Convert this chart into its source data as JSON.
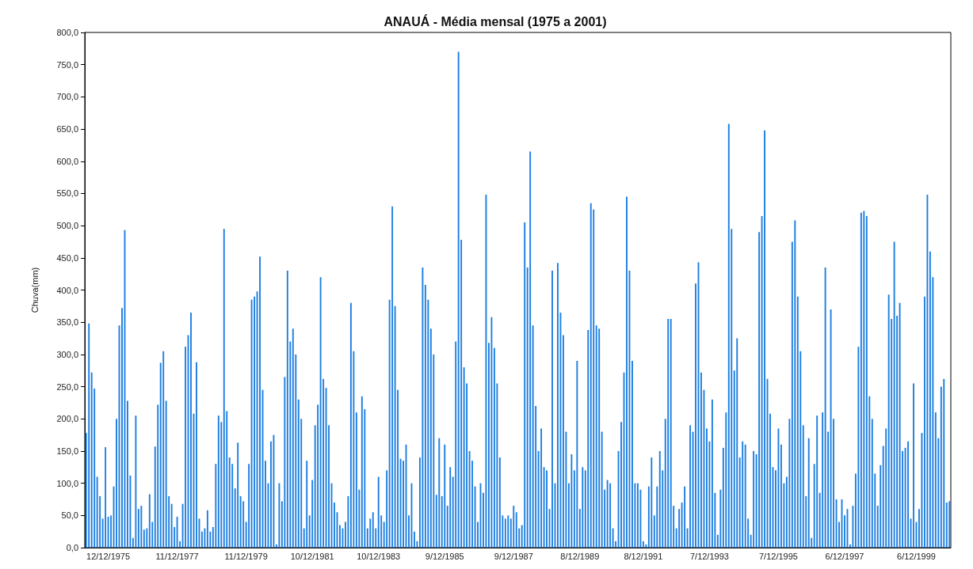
{
  "chart_data": {
    "type": "bar",
    "title": "ANAUÁ - Média mensal (1975 a 2001)",
    "ylabel": "Chuva(mm)",
    "categories": [
      null,
      null,
      null,
      null,
      null,
      null,
      null,
      null,
      "12/12/1975",
      null,
      null,
      null,
      null,
      null,
      null,
      null,
      null,
      null,
      null,
      null,
      null,
      null,
      null,
      null,
      null,
      null,
      null,
      null,
      null,
      null,
      null,
      null,
      null,
      "11/12/1977",
      null,
      null,
      null,
      null,
      null,
      null,
      null,
      null,
      null,
      null,
      null,
      null,
      null,
      null,
      null,
      null,
      null,
      null,
      null,
      null,
      null,
      null,
      null,
      null,
      "11/12/1979",
      null,
      null,
      null,
      null,
      null,
      null,
      null,
      null,
      null,
      null,
      null,
      null,
      null,
      null,
      null,
      null,
      null,
      null,
      null,
      null,
      null,
      null,
      null,
      "10/12/1981",
      null,
      null,
      null,
      null,
      null,
      null,
      null,
      null,
      null,
      null,
      null,
      null,
      null,
      null,
      null,
      null,
      null,
      null,
      null,
      null,
      null,
      null,
      null,
      "10/12/1983",
      null,
      null,
      null,
      null,
      null,
      null,
      null,
      null,
      null,
      null,
      null,
      null,
      null,
      null,
      null,
      null,
      null,
      null,
      null,
      null,
      null,
      null,
      null,
      "9/12/1985",
      null,
      null,
      null,
      null,
      null,
      null,
      null,
      null,
      null,
      null,
      null,
      null,
      null,
      null,
      null,
      null,
      null,
      null,
      null,
      null,
      null,
      null,
      null,
      null,
      "9/12/1987",
      null,
      null,
      null,
      null,
      null,
      null,
      null,
      null,
      null,
      null,
      null,
      null,
      null,
      null,
      null,
      null,
      null,
      null,
      null,
      null,
      null,
      null,
      null,
      "8/12/1989",
      null,
      null,
      null,
      null,
      null,
      null,
      null,
      null,
      null,
      null,
      null,
      null,
      null,
      null,
      null,
      null,
      null,
      null,
      null,
      null,
      null,
      null,
      "8/12/1991",
      null,
      null,
      null,
      null,
      null,
      null,
      null,
      null,
      null,
      null,
      null,
      null,
      null,
      null,
      null,
      null,
      null,
      null,
      null,
      null,
      null,
      null,
      null,
      "7/12/1993",
      null,
      null,
      null,
      null,
      null,
      null,
      null,
      null,
      null,
      null,
      null,
      null,
      null,
      null,
      null,
      null,
      null,
      null,
      null,
      null,
      null,
      null,
      null,
      null,
      "7/12/1995",
      null,
      null,
      null,
      null,
      null,
      null,
      null,
      null,
      null,
      null,
      null,
      null,
      null,
      null,
      null,
      null,
      null,
      null,
      null,
      null,
      null,
      null,
      null,
      "6/12/1997",
      null,
      null,
      null,
      null,
      null,
      null,
      null,
      null,
      null,
      null,
      null,
      null,
      null,
      null,
      null,
      null,
      null,
      null,
      null,
      null,
      null,
      null,
      null,
      null,
      null,
      "6/12/1999",
      null,
      null,
      null,
      null,
      null,
      null,
      null,
      null,
      null,
      null,
      null,
      null
    ],
    "values": [
      178,
      348,
      272,
      247,
      110,
      80,
      45,
      156,
      48,
      50,
      95,
      200,
      345,
      372,
      493,
      228,
      112,
      15,
      205,
      60,
      65,
      28,
      30,
      83,
      40,
      157,
      222,
      287,
      305,
      228,
      80,
      68,
      32,
      48,
      10,
      68,
      312,
      330,
      365,
      208,
      288,
      45,
      25,
      30,
      58,
      25,
      32,
      130,
      205,
      195,
      495,
      212,
      140,
      130,
      92,
      163,
      80,
      72,
      40,
      130,
      385,
      390,
      398,
      452,
      245,
      135,
      100,
      165,
      175,
      5,
      100,
      72,
      265,
      430,
      320,
      340,
      300,
      230,
      200,
      30,
      135,
      50,
      105,
      190,
      222,
      420,
      262,
      248,
      190,
      100,
      70,
      55,
      35,
      30,
      40,
      80,
      380,
      305,
      210,
      90,
      235,
      215,
      30,
      45,
      55,
      30,
      110,
      50,
      40,
      120,
      385,
      530,
      375,
      245,
      138,
      135,
      160,
      50,
      100,
      25,
      10,
      140,
      435,
      408,
      385,
      340,
      300,
      82,
      170,
      80,
      160,
      65,
      125,
      110,
      320,
      770,
      478,
      280,
      255,
      150,
      135,
      95,
      40,
      100,
      85,
      548,
      318,
      358,
      310,
      255,
      140,
      50,
      45,
      50,
      45,
      65,
      55,
      30,
      35,
      505,
      435,
      615,
      345,
      220,
      150,
      185,
      125,
      120,
      60,
      430,
      100,
      442,
      365,
      330,
      180,
      100,
      145,
      120,
      290,
      60,
      125,
      120,
      338,
      535,
      525,
      345,
      340,
      180,
      90,
      105,
      100,
      30,
      10,
      150,
      195,
      272,
      545,
      430,
      290,
      100,
      100,
      90,
      10,
      5,
      95,
      140,
      50,
      95,
      150,
      120,
      200,
      355,
      355,
      65,
      30,
      60,
      70,
      95,
      30,
      190,
      180,
      410,
      443,
      272,
      245,
      185,
      165,
      230,
      85,
      20,
      90,
      155,
      210,
      658,
      495,
      275,
      325,
      140,
      165,
      160,
      45,
      20,
      150,
      145,
      490,
      515,
      648,
      262,
      208,
      125,
      120,
      185,
      160,
      100,
      110,
      200,
      475,
      508,
      390,
      305,
      190,
      80,
      170,
      15,
      130,
      205,
      85,
      210,
      435,
      180,
      370,
      200,
      75,
      40,
      75,
      50,
      60,
      5,
      65,
      115,
      312,
      520,
      523,
      515,
      235,
      200,
      115,
      65,
      128,
      158,
      185,
      393,
      355,
      475,
      360,
      380,
      150,
      155,
      165,
      45,
      255,
      40,
      60,
      178,
      390,
      548,
      460,
      420,
      210,
      170,
      250,
      262,
      70,
      72
    ],
    "color": "#1e7fe0",
    "ylim": [
      0,
      800
    ],
    "yticks": [
      {
        "value": 0,
        "label": "0,0"
      },
      {
        "value": 50,
        "label": "50,0"
      },
      {
        "value": 100,
        "label": "100,0"
      },
      {
        "value": 150,
        "label": "150,0"
      },
      {
        "value": 200,
        "label": "200,0"
      },
      {
        "value": 250,
        "label": "250,0"
      },
      {
        "value": 300,
        "label": "300,0"
      },
      {
        "value": 350,
        "label": "350,0"
      },
      {
        "value": 400,
        "label": "400,0"
      },
      {
        "value": 450,
        "label": "450,0"
      },
      {
        "value": 500,
        "label": "500,0"
      },
      {
        "value": 550,
        "label": "550,0"
      },
      {
        "value": 600,
        "label": "600,0"
      },
      {
        "value": 650,
        "label": "650,0"
      },
      {
        "value": 700,
        "label": "700,0"
      },
      {
        "value": 750,
        "label": "750,0"
      },
      {
        "value": 800,
        "label": "800,0"
      }
    ],
    "grid": false
  }
}
